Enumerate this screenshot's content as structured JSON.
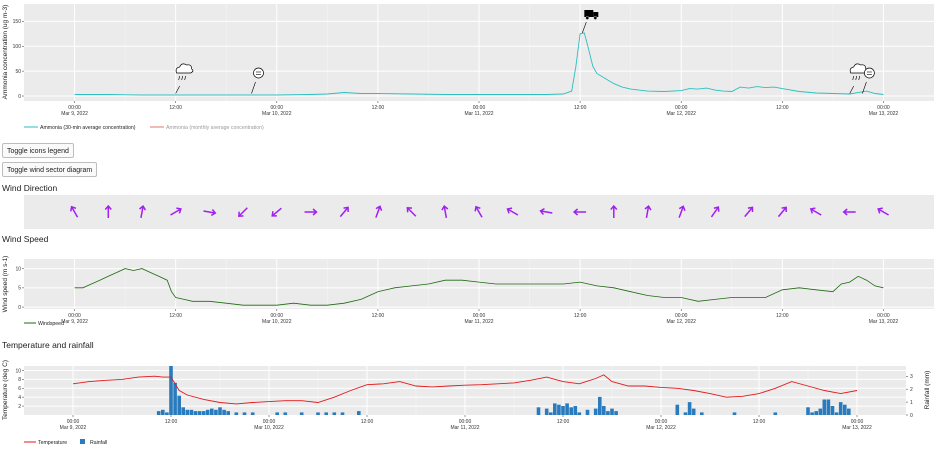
{
  "buttons": {
    "icons_legend": "Toggle icons legend",
    "wind_sector": "Toggle wind sector diagram"
  },
  "sections": {
    "wind_direction": "Wind Direction",
    "wind_speed": "Wind Speed",
    "temp_rain": "Temperature and rainfall"
  },
  "colors": {
    "ammonia": "#2bbfc0",
    "monthly": "#e0776f",
    "wind_arrow": "#a020f0",
    "windspeed": "#1e6b10",
    "temperature": "#e31a1c",
    "rainfall": "#2a7bbd",
    "panel": "#ebebeb"
  },
  "x_ticks": [
    {
      "t": 0,
      "l1": "00:00",
      "l2": "Mar 9, 2022"
    },
    {
      "t": 12,
      "l1": "12:00",
      "l2": ""
    },
    {
      "t": 24,
      "l1": "00:00",
      "l2": "Mar 10, 2022"
    },
    {
      "t": 36,
      "l1": "12:00",
      "l2": ""
    },
    {
      "t": 48,
      "l1": "00:00",
      "l2": "Mar 11, 2022"
    },
    {
      "t": 60,
      "l1": "12:00",
      "l2": ""
    },
    {
      "t": 72,
      "l1": "00:00",
      "l2": "Mar 12, 2022"
    },
    {
      "t": 84,
      "l1": "12:00",
      "l2": ""
    },
    {
      "t": 96,
      "l1": "00:00",
      "l2": "Mar 13, 2022"
    }
  ],
  "chart_data": [
    {
      "type": "line",
      "ylabel": "Ammonia concentration (ug m-3)",
      "ylim": [
        -10,
        185
      ],
      "yticks": [
        0,
        50,
        100,
        150
      ],
      "legend": [
        "Ammonia (30-min average concentration)",
        "Ammonia (monthly average concentration)"
      ],
      "x": [
        0,
        4,
        8,
        12,
        16,
        20,
        24,
        28,
        30,
        32,
        34,
        36,
        40,
        44,
        48,
        52,
        56,
        58,
        59,
        59.5,
        60,
        60.5,
        61,
        61.5,
        62,
        63,
        64,
        65,
        66,
        67,
        68,
        70,
        72,
        73,
        74,
        75,
        76,
        77,
        78,
        79,
        80,
        81,
        82,
        83,
        84,
        86,
        88,
        90,
        92,
        94,
        95,
        96
      ],
      "y": [
        3,
        3,
        2,
        2,
        2,
        2,
        2,
        3,
        4,
        7,
        5,
        5,
        4,
        3,
        3,
        3,
        3,
        4,
        10,
        60,
        125,
        127,
        95,
        60,
        45,
        35,
        25,
        18,
        14,
        12,
        10,
        9,
        11,
        15,
        14,
        16,
        12,
        10,
        9,
        18,
        16,
        19,
        17,
        18,
        15,
        9,
        6,
        5,
        4,
        10,
        5,
        3
      ],
      "monthly_avg": null,
      "icons": [
        {
          "t": 12,
          "name": "rain-cloud-icon"
        },
        {
          "t": 21,
          "name": "clock-icon"
        },
        {
          "t": 60.5,
          "name": "truck-icon"
        },
        {
          "t": 92,
          "name": "rain-cloud-icon"
        },
        {
          "t": 93.5,
          "name": "clock-icon"
        }
      ]
    },
    {
      "type": "direction",
      "title": "Wind Direction",
      "t": [
        0,
        4,
        8,
        12,
        16,
        20,
        24,
        28,
        32,
        36,
        40,
        44,
        48,
        52,
        56,
        60,
        64,
        68,
        72,
        76,
        80,
        84,
        88,
        92,
        96
      ],
      "dir_to_deg": [
        330,
        0,
        10,
        60,
        100,
        225,
        230,
        90,
        40,
        20,
        315,
        350,
        330,
        300,
        280,
        270,
        0,
        10,
        20,
        35,
        40,
        40,
        300,
        270,
        300
      ]
    },
    {
      "type": "line",
      "title": "Wind Speed",
      "ylabel": "Wind speed (m s-1)",
      "legend": [
        "Windspeed"
      ],
      "ylim": [
        -0.5,
        12.5
      ],
      "yticks": [
        0,
        5,
        10
      ],
      "x": [
        0,
        1,
        2,
        3,
        4,
        5,
        6,
        7,
        8,
        9,
        10,
        11,
        11.5,
        12,
        13,
        14,
        16,
        18,
        20,
        22,
        24,
        26,
        28,
        30,
        32,
        34,
        36,
        38,
        40,
        42,
        44,
        46,
        48,
        50,
        52,
        54,
        56,
        58,
        60,
        62,
        64,
        66,
        68,
        70,
        72,
        74,
        76,
        78,
        80,
        82,
        84,
        86,
        88,
        90,
        91,
        92,
        93,
        94,
        95,
        96
      ],
      "y": [
        5,
        5,
        6,
        7,
        8,
        9,
        10,
        9.5,
        10,
        9,
        8,
        7,
        4,
        2.5,
        2,
        1.5,
        1.5,
        1,
        0.5,
        0.5,
        0.5,
        1,
        0.5,
        0.5,
        1,
        2,
        4,
        5,
        5.5,
        6,
        7,
        7,
        6.5,
        6,
        6,
        6,
        6,
        6,
        6.5,
        5.5,
        5,
        4,
        3,
        2.5,
        2.5,
        1.5,
        2,
        2.5,
        2.5,
        2.5,
        4.5,
        5,
        4.5,
        4,
        6,
        6.5,
        8,
        7,
        5.5,
        5
      ]
    },
    {
      "type": "bar+line",
      "title": "Temperature and rainfall",
      "ylabel": "Temperature (deg C)",
      "y2label": "Rainfall (mm)",
      "ylim": [
        0,
        11
      ],
      "yticks": [
        2,
        4,
        6,
        8,
        10
      ],
      "y2lim": [
        0,
        3.8
      ],
      "y2ticks": [
        0,
        1,
        2,
        3
      ],
      "legend": [
        "Temperature",
        "Rainfall"
      ],
      "temp_x": [
        0,
        2,
        4,
        6,
        8,
        10,
        11,
        12,
        13,
        14,
        16,
        18,
        20,
        22,
        24,
        26,
        28,
        30,
        32,
        34,
        36,
        38,
        40,
        42,
        44,
        46,
        48,
        50,
        52,
        54,
        56,
        58,
        60,
        62,
        64,
        65,
        66,
        67,
        68,
        70,
        72,
        74,
        76,
        78,
        80,
        82,
        84,
        86,
        88,
        90,
        92,
        94,
        96
      ],
      "temp_y": [
        7,
        7.5,
        7.8,
        8,
        8.5,
        8.7,
        8.5,
        8.5,
        5.5,
        4.5,
        3.5,
        2.8,
        2.5,
        2.8,
        3,
        3.2,
        3.2,
        2.8,
        4,
        5.5,
        6.8,
        7,
        7.5,
        6.5,
        6.3,
        6.5,
        6.7,
        6.8,
        7,
        7.2,
        7.8,
        8.5,
        7.5,
        7,
        8.2,
        9,
        7.5,
        7,
        6.5,
        6.5,
        6.2,
        6,
        5.5,
        4.8,
        4,
        4.2,
        4.8,
        6,
        7.5,
        6.5,
        5.5,
        4.8,
        5.5
      ],
      "rain_x": [
        10.5,
        11,
        11.5,
        12,
        12.5,
        13,
        13.5,
        14,
        14.5,
        15,
        15.5,
        16,
        16.5,
        17,
        17.5,
        18,
        18.5,
        19,
        20,
        21,
        22,
        25,
        26,
        28,
        30,
        31,
        32,
        33,
        35,
        57,
        58,
        58.5,
        59,
        59.5,
        60,
        60.5,
        61,
        61.5,
        62,
        63,
        64,
        64.5,
        65,
        65.5,
        66,
        66.5,
        74,
        75,
        75.5,
        76,
        77,
        81,
        86,
        90,
        90.5,
        91,
        91.5,
        92,
        92.5,
        93,
        93.5,
        94,
        94.5,
        95
      ],
      "rain_y": [
        0.3,
        0.4,
        0.2,
        3.8,
        2.5,
        1.5,
        0.6,
        0.4,
        0.4,
        0.3,
        0.3,
        0.3,
        0.4,
        0.5,
        0.4,
        0.6,
        0.4,
        0.3,
        0.2,
        0.2,
        0.2,
        0.2,
        0.2,
        0.2,
        0.2,
        0.2,
        0.2,
        0.2,
        0.3,
        0.6,
        0.5,
        0.2,
        0.9,
        0.8,
        0.7,
        0.9,
        0.6,
        0.7,
        0.2,
        0.4,
        0.5,
        1.4,
        0.7,
        0.3,
        0.5,
        0.3,
        0.8,
        0.2,
        1.0,
        0.5,
        0.2,
        0.2,
        0.2,
        0.6,
        0.2,
        0.3,
        0.5,
        1.2,
        1.2,
        0.7,
        0.2,
        1.0,
        0.8,
        0.5
      ]
    }
  ]
}
